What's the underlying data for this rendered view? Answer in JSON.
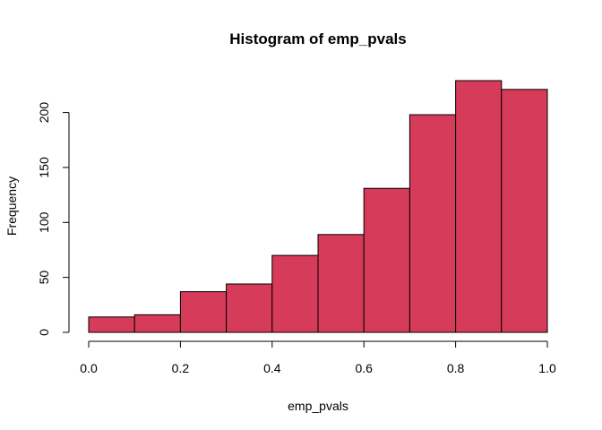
{
  "chart_data": {
    "type": "bar",
    "title": "Histogram of emp_pvals",
    "xlabel": "emp_pvals",
    "ylabel": "Frequency",
    "bins": [
      {
        "from": 0.0,
        "to": 0.1,
        "value": 14
      },
      {
        "from": 0.1,
        "to": 0.2,
        "value": 16
      },
      {
        "from": 0.2,
        "to": 0.3,
        "value": 37
      },
      {
        "from": 0.3,
        "to": 0.4,
        "value": 44
      },
      {
        "from": 0.4,
        "to": 0.5,
        "value": 70
      },
      {
        "from": 0.5,
        "to": 0.6,
        "value": 89
      },
      {
        "from": 0.6,
        "to": 0.7,
        "value": 131
      },
      {
        "from": 0.7,
        "to": 0.8,
        "value": 198
      },
      {
        "from": 0.8,
        "to": 0.9,
        "value": 229
      },
      {
        "from": 0.9,
        "to": 1.0,
        "value": 221
      }
    ],
    "xlim": [
      0.0,
      1.0
    ],
    "ylim": [
      0,
      229
    ],
    "x_ticks": [
      "0.0",
      "0.2",
      "0.4",
      "0.6",
      "0.8",
      "1.0"
    ],
    "y_ticks": [
      "0",
      "50",
      "100",
      "150",
      "200"
    ],
    "bar_color": "#d63b5a",
    "edge_color": "#000000",
    "grid": false,
    "legend": "none"
  }
}
